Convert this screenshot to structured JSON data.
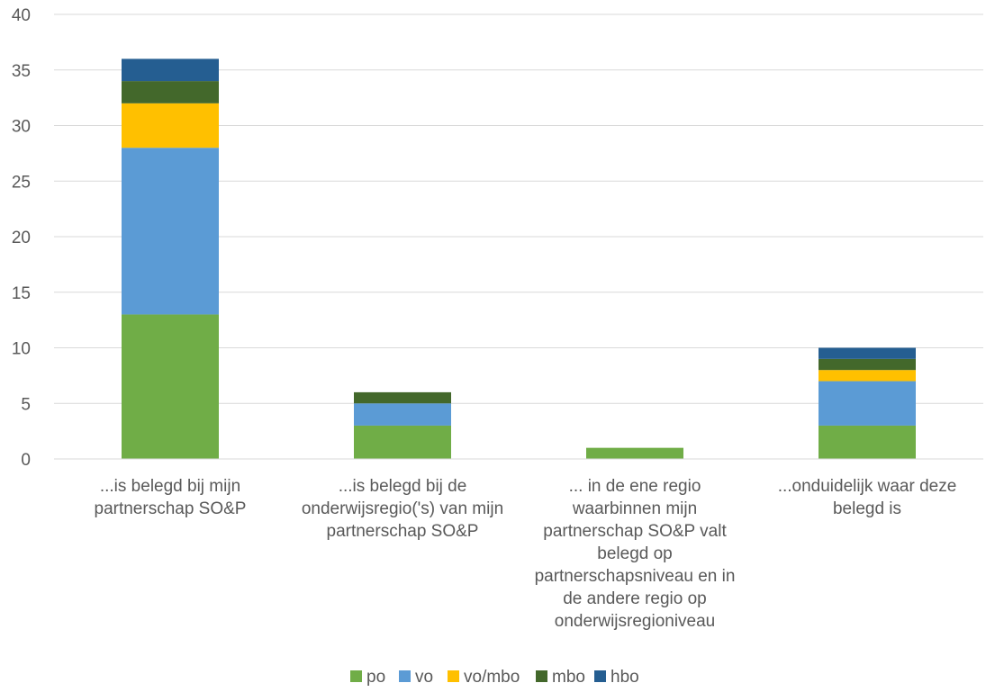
{
  "chart_data": {
    "type": "bar",
    "stacked": true,
    "title": "",
    "xlabel": "",
    "ylabel": "",
    "ylim": [
      0,
      40
    ],
    "yticks": [
      0,
      5,
      10,
      15,
      20,
      25,
      30,
      35,
      40
    ],
    "grid": true,
    "legend_position": "bottom",
    "categories": [
      [
        "...is belegd bij mijn",
        "partnerschap SO&P"
      ],
      [
        "...is belegd bij de",
        "onderwijsregio('s) van mijn",
        "partnerschap SO&P"
      ],
      [
        "... in de ene regio",
        "waarbinnen mijn",
        "partnerschap SO&P valt",
        "belegd op",
        "partnerschapsniveau en in",
        "de andere regio op",
        "onderwijsregioniveau"
      ],
      [
        "...onduidelijk waar deze",
        "belegd is"
      ]
    ],
    "series": [
      {
        "name": "po",
        "color": "#70ad47",
        "values": [
          13,
          3,
          1,
          3
        ]
      },
      {
        "name": "vo",
        "color": "#5b9bd5",
        "values": [
          15,
          2,
          0,
          4
        ]
      },
      {
        "name": "vo/mbo",
        "color": "#ffc000",
        "values": [
          4,
          0,
          0,
          1
        ]
      },
      {
        "name": "mbo",
        "color": "#43682b",
        "values": [
          2,
          1,
          0,
          1
        ]
      },
      {
        "name": "hbo",
        "color": "#255e91",
        "values": [
          2,
          0,
          0,
          1
        ]
      }
    ]
  }
}
